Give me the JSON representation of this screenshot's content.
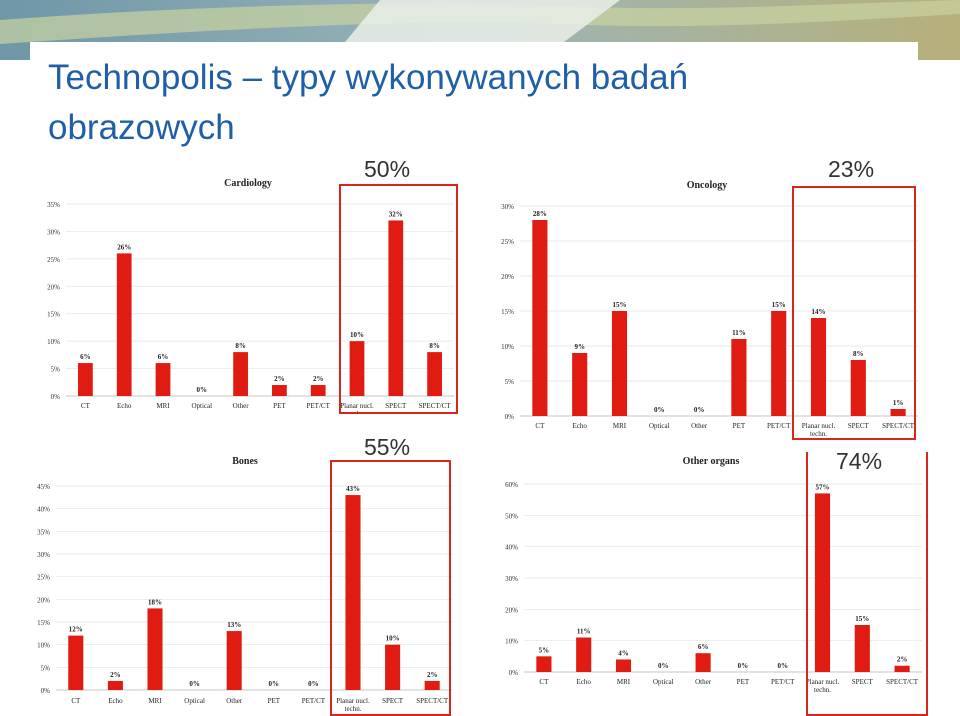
{
  "slide": {
    "title_line1": "Technopolis – typy wykonywanych badań",
    "title_line2": "obrazowych"
  },
  "highlights": {
    "cardiology": "50%",
    "oncology": "23%",
    "bones": "55%",
    "other_organs": "74%"
  },
  "colors": {
    "bar": "#e01b12",
    "highlight_box": "#d9261c",
    "title": "#1f5fa8"
  },
  "chart_data": [
    {
      "type": "bar",
      "title": "Cardiology",
      "categories": [
        "CT",
        "Echo",
        "MRI",
        "Optical",
        "Other",
        "PET",
        "PET/CT",
        "Planar nucl. techn.",
        "SPECT",
        "SPECT/CT"
      ],
      "values": [
        6,
        26,
        6,
        0,
        8,
        2,
        2,
        10,
        32,
        8
      ],
      "data_labels": [
        "6%",
        "26%",
        "6%",
        "0%",
        "8%",
        "2%",
        "2%",
        "10%",
        "32%",
        "8%"
      ],
      "yticks": [
        "0%",
        "5%",
        "10%",
        "15%",
        "20%",
        "25%",
        "30%",
        "35%"
      ],
      "ylim": [
        0,
        35
      ],
      "ystep": 5
    },
    {
      "type": "bar",
      "title": "Oncology",
      "categories": [
        "CT",
        "Echo",
        "MRI",
        "Optical",
        "Other",
        "PET",
        "PET/CT",
        "Planar nucl. techn.",
        "SPECT",
        "SPECT/CT"
      ],
      "values": [
        28,
        9,
        15,
        0,
        0,
        11,
        15,
        14,
        8,
        1
      ],
      "data_labels": [
        "28%",
        "9%",
        "15%",
        "0%",
        "0%",
        "11%",
        "15%",
        "14%",
        "8%",
        "1%"
      ],
      "yticks": [
        "0%",
        "5%",
        "10%",
        "15%",
        "20%",
        "25%",
        "30%"
      ],
      "ylim": [
        0,
        30
      ],
      "ystep": 5
    },
    {
      "type": "bar",
      "title": "Bones",
      "categories": [
        "CT",
        "Echo",
        "MRI",
        "Optical",
        "Other",
        "PET",
        "PET/CT",
        "Planar nucl. techn.",
        "SPECT",
        "SPECT/CT"
      ],
      "values": [
        12,
        2,
        18,
        0,
        13,
        0,
        0,
        43,
        10,
        2
      ],
      "data_labels": [
        "12%",
        "2%",
        "18%",
        "0%",
        "13%",
        "0%",
        "0%",
        "43%",
        "10%",
        "2%"
      ],
      "yticks": [
        "0%",
        "5%",
        "10%",
        "15%",
        "20%",
        "25%",
        "30%",
        "35%",
        "40%",
        "45%"
      ],
      "ylim": [
        0,
        45
      ],
      "ystep": 5
    },
    {
      "type": "bar",
      "title": "Other organs",
      "categories": [
        "CT",
        "Echo",
        "MRI",
        "Optical",
        "Other",
        "PET",
        "PET/CT",
        "Planar nucl. techn.",
        "SPECT",
        "SPECT/CT"
      ],
      "values": [
        5,
        11,
        4,
        0,
        6,
        0,
        0,
        57,
        15,
        2
      ],
      "data_labels": [
        "5%",
        "11%",
        "4%",
        "0%",
        "6%",
        "0%",
        "0%",
        "57%",
        "15%",
        "2%"
      ],
      "yticks": [
        "0%",
        "10%",
        "20%",
        "30%",
        "40%",
        "50%",
        "60%"
      ],
      "ylim": [
        0,
        60
      ],
      "ystep": 10
    }
  ]
}
